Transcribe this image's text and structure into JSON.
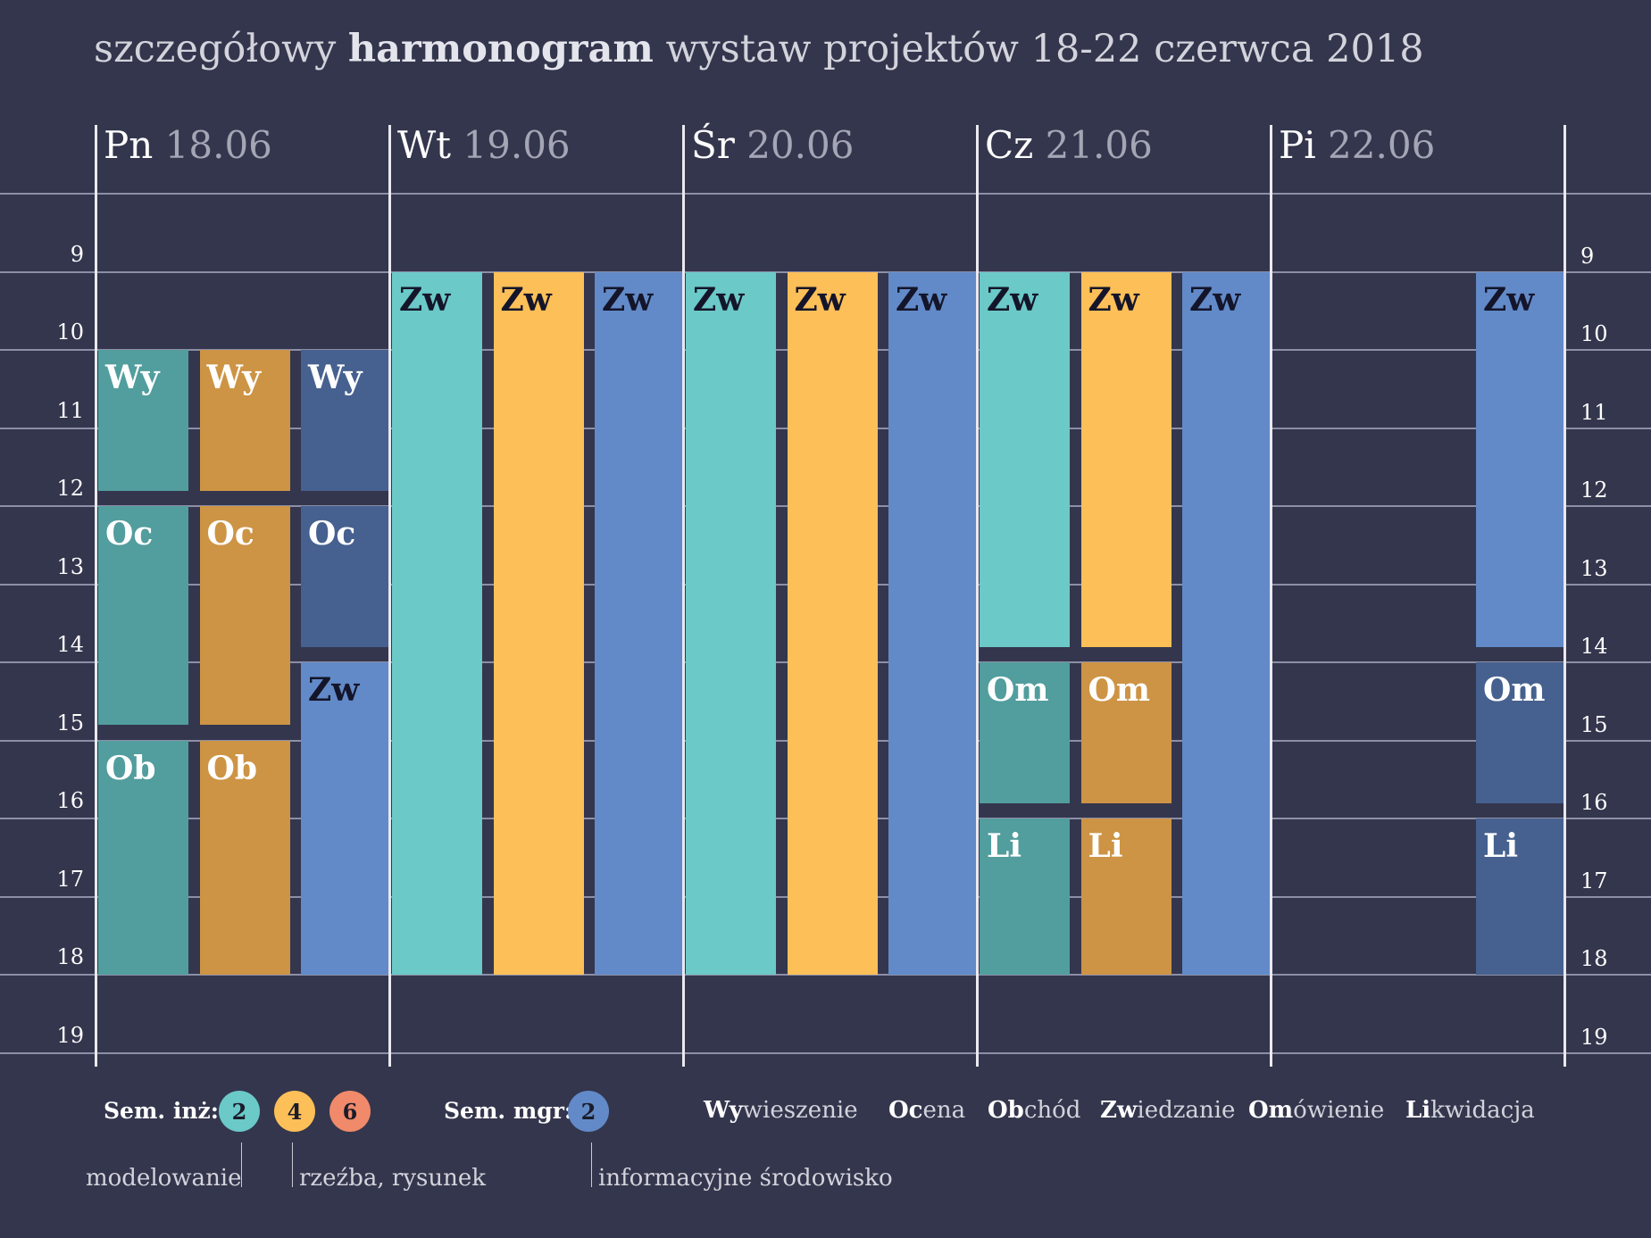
{
  "title": {
    "pre": "szczegółowy",
    "bold": "harmonogram",
    "post": "wystaw projektów 18-22 czerwca 2018"
  },
  "days": [
    {
      "name": "Pn",
      "date": "18.06"
    },
    {
      "name": "Wt",
      "date": "19.06"
    },
    {
      "name": "Śr",
      "date": "20.06"
    },
    {
      "name": "Cz",
      "date": "21.06"
    },
    {
      "name": "Pi",
      "date": "22.06"
    }
  ],
  "hours": [
    "9",
    "10",
    "11",
    "12",
    "13",
    "14",
    "15",
    "16",
    "17",
    "18",
    "19"
  ],
  "colors": {
    "inz2": "#6bc9c8",
    "inz2_dark": "#529d9e",
    "inz4": "#fdbf58",
    "inz4_dark": "#cd9445",
    "inz6": "#f08a6a",
    "mgr2": "#628ac8",
    "mgr2_dark": "#46618f",
    "background": "#34364d"
  },
  "events": [
    {
      "day": 0,
      "lane": 0,
      "start": 10.5,
      "end": 12.3,
      "label": "Wy",
      "color": "inz2_dark",
      "text": "light"
    },
    {
      "day": 0,
      "lane": 1,
      "start": 10.5,
      "end": 12.3,
      "label": "Wy",
      "color": "inz4_dark",
      "text": "light"
    },
    {
      "day": 0,
      "lane": 2,
      "start": 10.5,
      "end": 12.3,
      "label": "Wy",
      "color": "mgr2_dark",
      "text": "light"
    },
    {
      "day": 0,
      "lane": 0,
      "start": 12.5,
      "end": 15.3,
      "label": "Oc",
      "color": "inz2_dark",
      "text": "light"
    },
    {
      "day": 0,
      "lane": 1,
      "start": 12.5,
      "end": 15.3,
      "label": "Oc",
      "color": "inz4_dark",
      "text": "light"
    },
    {
      "day": 0,
      "lane": 2,
      "start": 12.5,
      "end": 14.3,
      "label": "Oc",
      "color": "mgr2_dark",
      "text": "light"
    },
    {
      "day": 0,
      "lane": 2,
      "start": 14.5,
      "end": 18.5,
      "label": "Zw",
      "color": "mgr2",
      "text": "dark"
    },
    {
      "day": 0,
      "lane": 0,
      "start": 15.5,
      "end": 18.5,
      "label": "Ob",
      "color": "inz2_dark",
      "text": "light"
    },
    {
      "day": 0,
      "lane": 1,
      "start": 15.5,
      "end": 18.5,
      "label": "Ob",
      "color": "inz4_dark",
      "text": "light"
    },
    {
      "day": 1,
      "lane": 0,
      "start": 9.5,
      "end": 18.5,
      "label": "Zw",
      "color": "inz2",
      "text": "dark"
    },
    {
      "day": 1,
      "lane": 1,
      "start": 9.5,
      "end": 18.5,
      "label": "Zw",
      "color": "inz4",
      "text": "dark"
    },
    {
      "day": 1,
      "lane": 2,
      "start": 9.5,
      "end": 18.5,
      "label": "Zw",
      "color": "mgr2",
      "text": "dark"
    },
    {
      "day": 2,
      "lane": 0,
      "start": 9.5,
      "end": 18.5,
      "label": "Zw",
      "color": "inz2",
      "text": "dark"
    },
    {
      "day": 2,
      "lane": 1,
      "start": 9.5,
      "end": 18.5,
      "label": "Zw",
      "color": "inz4",
      "text": "dark"
    },
    {
      "day": 2,
      "lane": 2,
      "start": 9.5,
      "end": 18.5,
      "label": "Zw",
      "color": "mgr2",
      "text": "dark"
    },
    {
      "day": 3,
      "lane": 0,
      "start": 9.5,
      "end": 14.3,
      "label": "Zw",
      "color": "inz2",
      "text": "dark"
    },
    {
      "day": 3,
      "lane": 1,
      "start": 9.5,
      "end": 14.3,
      "label": "Zw",
      "color": "inz4",
      "text": "dark"
    },
    {
      "day": 3,
      "lane": 2,
      "start": 9.5,
      "end": 18.5,
      "label": "Zw",
      "color": "mgr2",
      "text": "dark"
    },
    {
      "day": 3,
      "lane": 0,
      "start": 14.5,
      "end": 16.3,
      "label": "Om",
      "color": "inz2_dark",
      "text": "light"
    },
    {
      "day": 3,
      "lane": 1,
      "start": 14.5,
      "end": 16.3,
      "label": "Om",
      "color": "inz4_dark",
      "text": "light"
    },
    {
      "day": 3,
      "lane": 0,
      "start": 16.5,
      "end": 18.5,
      "label": "Li",
      "color": "inz2_dark",
      "text": "light"
    },
    {
      "day": 3,
      "lane": 1,
      "start": 16.5,
      "end": 18.5,
      "label": "Li",
      "color": "inz4_dark",
      "text": "light"
    },
    {
      "day": 4,
      "lane": 2,
      "start": 9.5,
      "end": 14.3,
      "label": "Zw",
      "color": "mgr2",
      "text": "dark"
    },
    {
      "day": 4,
      "lane": 2,
      "start": 14.5,
      "end": 16.3,
      "label": "Om",
      "color": "mgr2_dark",
      "text": "light"
    },
    {
      "day": 4,
      "lane": 2,
      "start": 16.5,
      "end": 18.5,
      "label": "Li",
      "color": "mgr2_dark",
      "text": "light"
    }
  ],
  "legend": {
    "inz_label": "Sem. inż:",
    "inz_badges": [
      {
        "value": "2",
        "color": "inz2"
      },
      {
        "value": "4",
        "color": "inz4"
      },
      {
        "value": "6",
        "color": "inz6"
      }
    ],
    "mgr_label": "Sem. mgr:",
    "mgr_badge": {
      "value": "2",
      "color": "mgr2"
    },
    "abbreviations": [
      {
        "bold": "Wy",
        "rest": "wieszenie"
      },
      {
        "bold": "Oc",
        "rest": "ena"
      },
      {
        "bold": "Ob",
        "rest": "chód"
      },
      {
        "bold": "Zw",
        "rest": "iedzanie"
      },
      {
        "bold": "Om",
        "rest": "ówienie"
      },
      {
        "bold": "Li",
        "rest": "kwidacja"
      }
    ],
    "specializations": [
      "modelowanie",
      "rzeźba, rysunek",
      "informacyjne środowisko"
    ]
  }
}
